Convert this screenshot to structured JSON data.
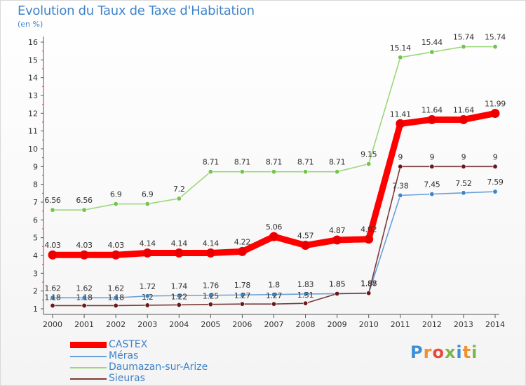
{
  "title": "Evolution du Taux de Taxe d'Habitation",
  "unit_label": "(en %)",
  "logo": {
    "text": "Proxiti",
    "colors": [
      "#3a8fd6",
      "#f09030",
      "#e84a3c",
      "#7ab648",
      "#3a8fd6",
      "#f09030",
      "#7ab648"
    ]
  },
  "chart_data": {
    "type": "line",
    "x": [
      "2000",
      "2001",
      "2002",
      "2003",
      "2004",
      "2005",
      "2006",
      "2007",
      "2008",
      "2009",
      "2010",
      "2011",
      "2012",
      "2013",
      "2014"
    ],
    "ylim": [
      1,
      16
    ],
    "yticks": [
      1,
      2,
      3,
      4,
      5,
      6,
      7,
      8,
      9,
      10,
      11,
      12,
      13,
      14,
      15,
      16
    ],
    "grid": false,
    "legend_position": "bottom-left",
    "series": [
      {
        "name": "CASTEX",
        "color": "#ff0000",
        "marker_color": "#e80000",
        "emphasis": true,
        "values": [
          4.03,
          4.03,
          4.03,
          4.14,
          4.14,
          4.14,
          4.22,
          5.06,
          4.57,
          4.87,
          4.92,
          11.41,
          11.64,
          11.64,
          11.99
        ],
        "labels": [
          "4.03",
          "4.03",
          "4.03",
          "4.14",
          "4.14",
          "4.14",
          "4.22",
          "5.06",
          "4.57",
          "4.87",
          "4.92",
          "11.41",
          "11.64",
          "11.64",
          "11.99"
        ]
      },
      {
        "name": "Méras",
        "color": "#6aa0d8",
        "marker_color": "#3a86c8",
        "emphasis": false,
        "values": [
          1.62,
          1.62,
          1.62,
          1.72,
          1.74,
          1.76,
          1.78,
          1.8,
          1.83,
          1.85,
          1.87,
          7.38,
          7.45,
          7.52,
          7.59
        ],
        "labels": [
          "1.62",
          "1.62",
          "1.62",
          "1.72",
          "1.74",
          "1.76",
          "1.78",
          "1.8",
          "1.83",
          "1.85",
          "1.87",
          "7.38",
          "7.45",
          "7.52",
          "7.59"
        ]
      },
      {
        "name": "Daumazan-sur-Arize",
        "color": "#9bd87a",
        "marker_color": "#72c44a",
        "emphasis": false,
        "values": [
          6.56,
          6.56,
          6.9,
          6.9,
          7.2,
          8.71,
          8.71,
          8.71,
          8.71,
          8.71,
          9.15,
          15.14,
          15.44,
          15.74,
          15.74
        ],
        "labels": [
          "6.56",
          "6.56",
          "6.9",
          "6.9",
          "7.2",
          "8.71",
          "8.71",
          "8.71",
          "8.71",
          "8.71",
          "9.15",
          "15.14",
          "15.44",
          "15.74",
          "15.74"
        ]
      },
      {
        "name": "Sieuras",
        "color": "#7a3a3a",
        "marker_color": "#6a1818",
        "emphasis": false,
        "values": [
          1.18,
          1.18,
          1.18,
          1.2,
          1.22,
          1.25,
          1.27,
          1.27,
          1.31,
          1.85,
          1.88,
          9,
          9,
          9,
          9
        ],
        "labels": [
          "1.18",
          "1.18",
          "1.18",
          "1.2",
          "1.22",
          "1.25",
          "1.27",
          "1.27",
          "1.31",
          "1.85",
          "1.88",
          "9",
          "9",
          "9",
          "9"
        ]
      }
    ]
  }
}
